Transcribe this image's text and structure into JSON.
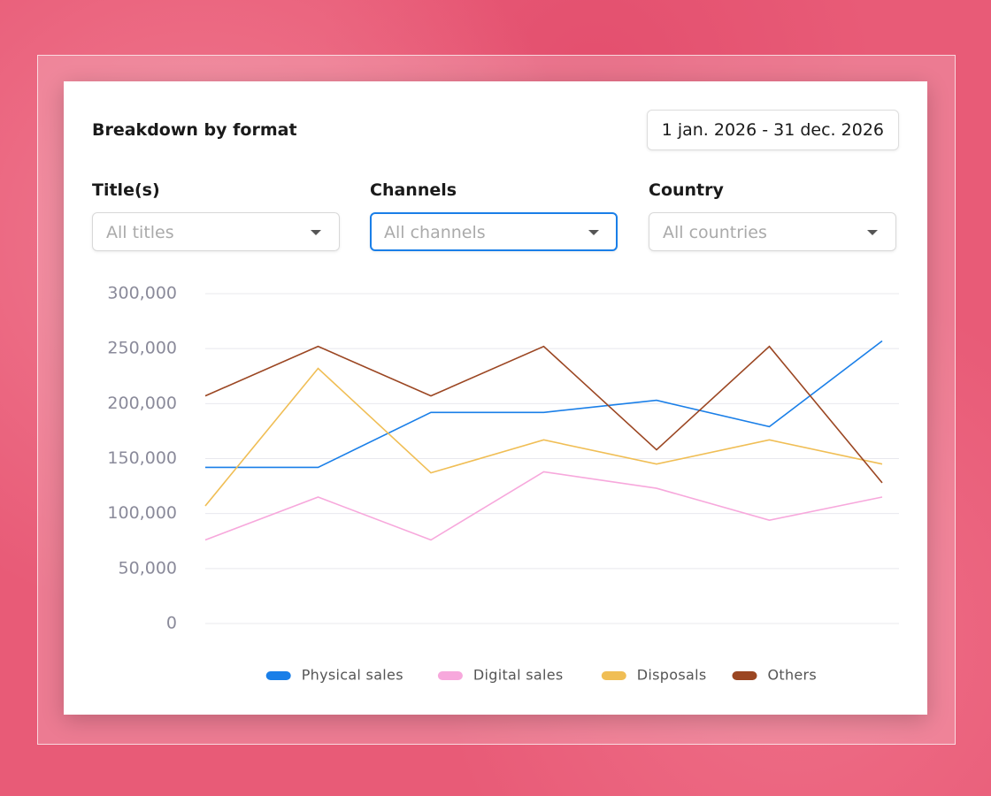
{
  "header": {
    "title": "Breakdown by format",
    "date_range": "1 jan. 2026 - 31 dec. 2026"
  },
  "filters": [
    {
      "label": "Title(s)",
      "placeholder": "All titles"
    },
    {
      "label": "Channels",
      "placeholder": "All channels"
    },
    {
      "label": "Country",
      "placeholder": "All countries"
    }
  ],
  "chart_data": {
    "type": "line",
    "categories": [
      null,
      null,
      null,
      null,
      null,
      null,
      null
    ],
    "series": [
      {
        "name": "Physical sales",
        "color": "#1a7fe8",
        "values": [
          142000,
          142000,
          192000,
          192000,
          203000,
          179000,
          257000
        ]
      },
      {
        "name": "Digital sales",
        "color": "#f7a8dc",
        "values": [
          76000,
          115000,
          76000,
          138000,
          123000,
          94000,
          115000
        ]
      },
      {
        "name": "Disposals",
        "color": "#f0be55",
        "values": [
          107000,
          232000,
          137000,
          167000,
          145000,
          167000,
          145000
        ]
      },
      {
        "name": "Others",
        "color": "#9b4622",
        "values": [
          207000,
          252000,
          207000,
          252000,
          158000,
          252000,
          128000
        ]
      }
    ],
    "ylim": [
      0,
      300000
    ],
    "yticks": [
      0,
      {
        "value": 50000,
        "label": "50,000"
      },
      {
        "value": 100000,
        "label": "100,000"
      },
      {
        "value": 150000,
        "label": "150,000"
      },
      {
        "value": 200000,
        "label": "200,000"
      },
      {
        "value": 250000,
        "label": "250,000"
      },
      {
        "value": 300000,
        "label": "300,000"
      }
    ],
    "grid": true,
    "legend": "bottom"
  }
}
